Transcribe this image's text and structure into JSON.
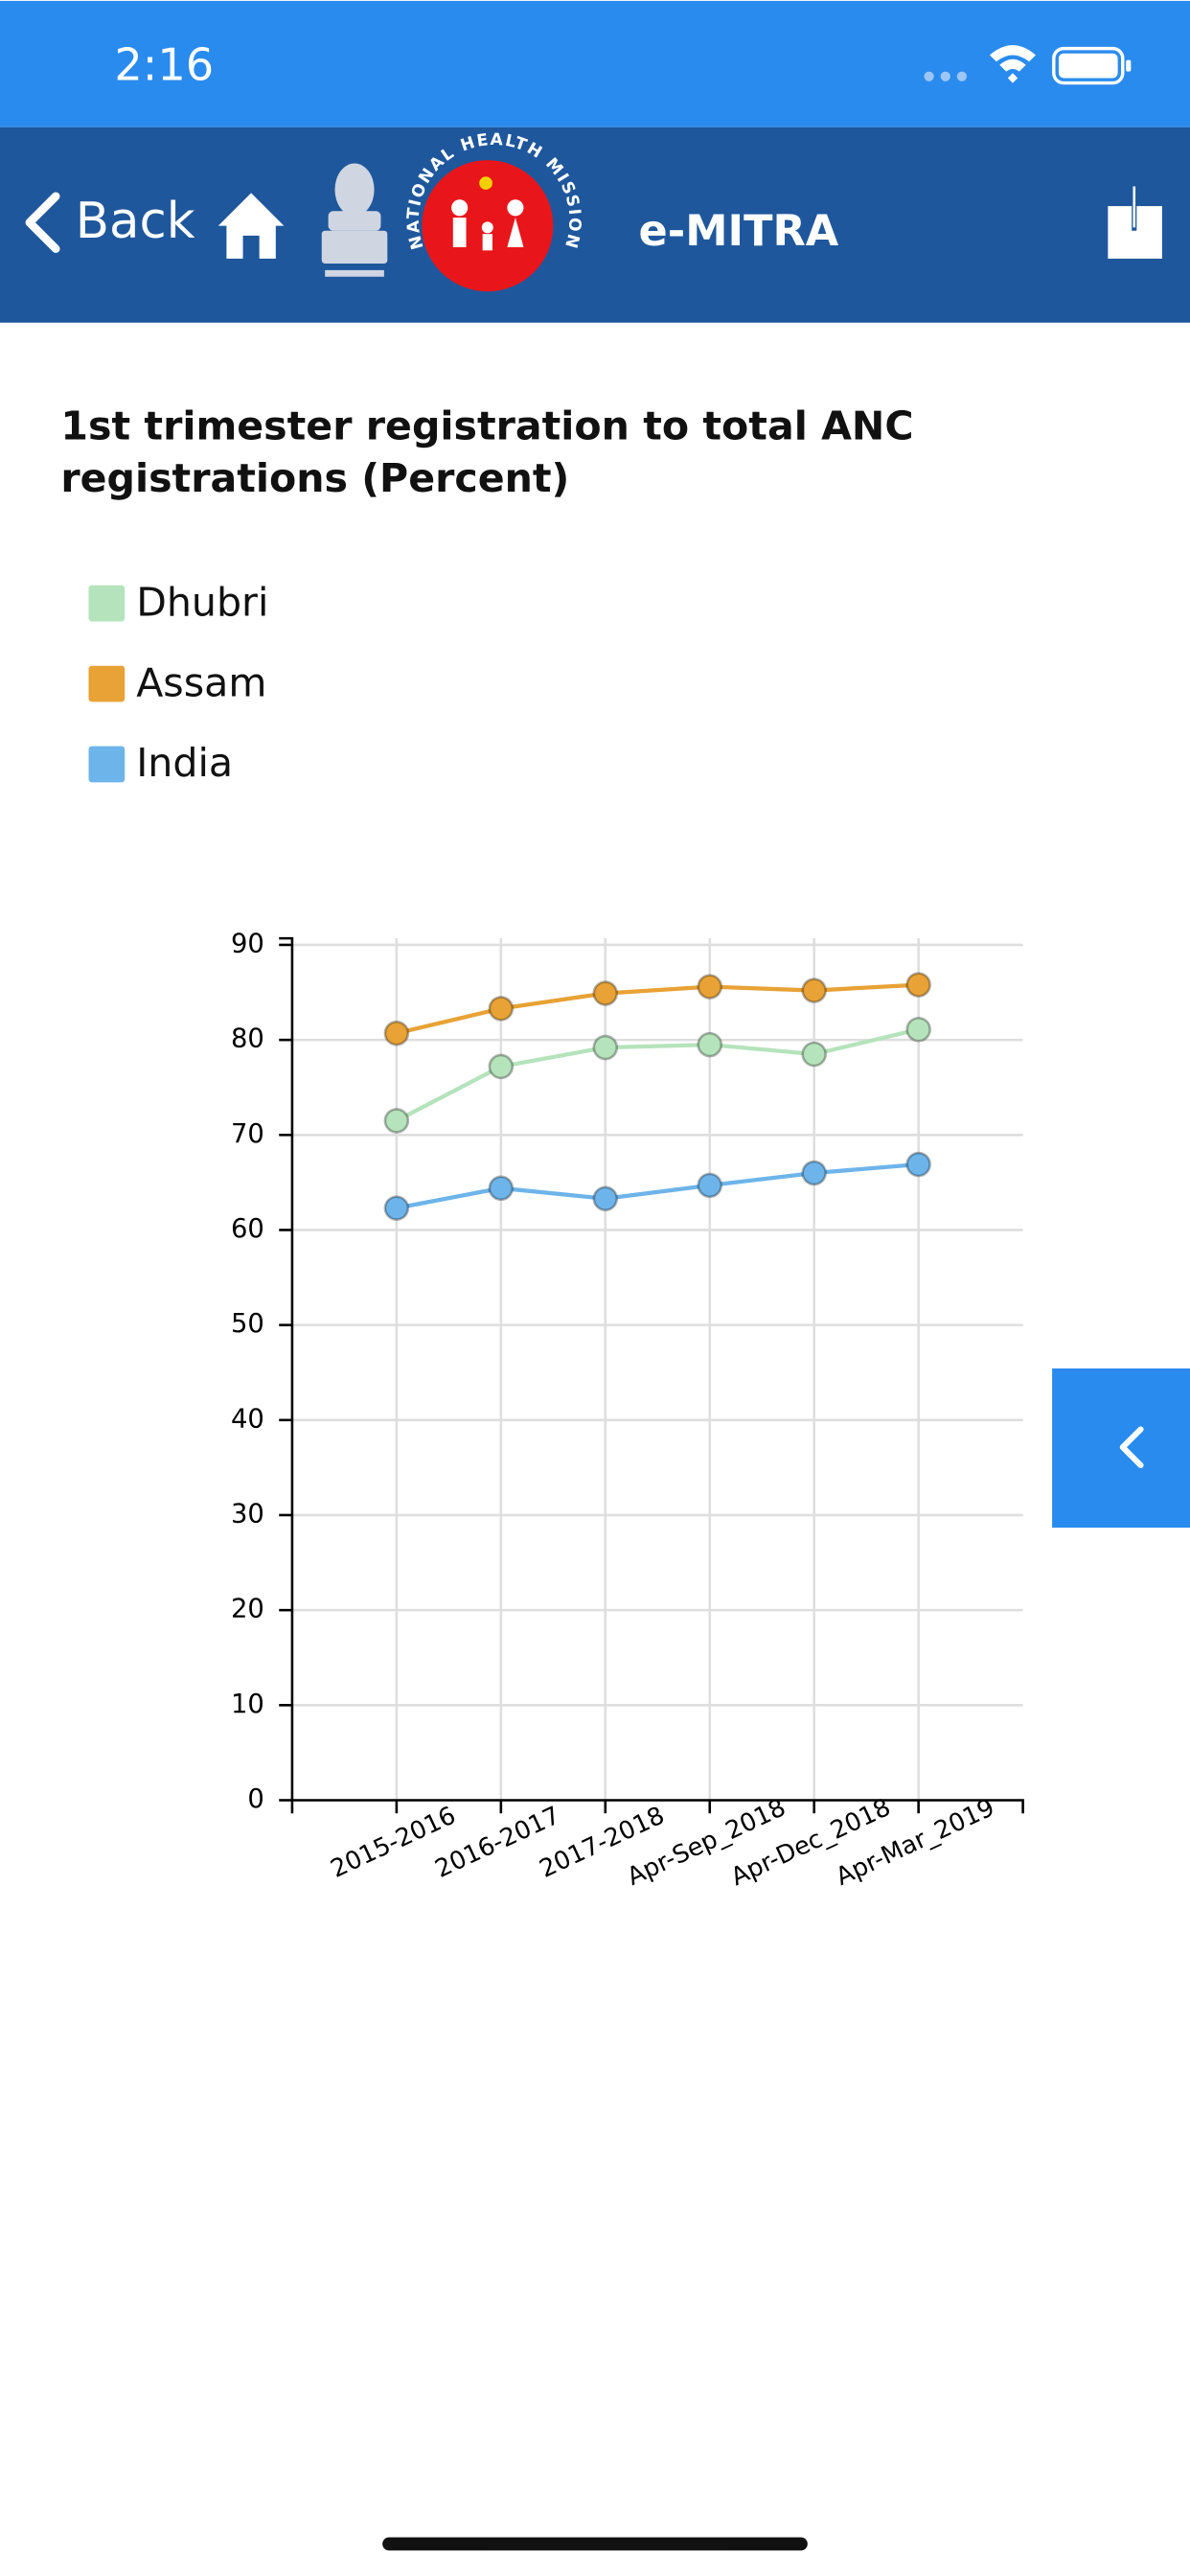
{
  "status_bar": {
    "time": "2:16"
  },
  "nav": {
    "back": "Back",
    "logo_text": "NATIONAL HEALTH MISSION",
    "title": "e-MITRA"
  },
  "chart_data": {
    "type": "line",
    "title": "1st trimester registration to total ANC registrations (Percent)",
    "categories": [
      "2015-2016",
      "2016-2017",
      "2017-2018",
      "Apr-Sep_2018",
      "Apr-Dec_2018",
      "Apr-Mar_2019"
    ],
    "series": [
      {
        "name": "Dhubri",
        "color": "#b5e3bb",
        "values": [
          71.5,
          77.2,
          79.2,
          79.5,
          78.5,
          81.1
        ]
      },
      {
        "name": "Assam",
        "color": "#e8a235",
        "values": [
          80.7,
          83.3,
          84.9,
          85.6,
          85.2,
          85.8
        ]
      },
      {
        "name": "India",
        "color": "#6db4ea",
        "values": [
          62.3,
          64.4,
          63.3,
          64.7,
          66.0,
          66.9
        ]
      }
    ],
    "ylim": [
      0,
      90
    ],
    "yticks": [
      0,
      10,
      20,
      30,
      40,
      50,
      60,
      70,
      80,
      90
    ],
    "grid": true
  }
}
